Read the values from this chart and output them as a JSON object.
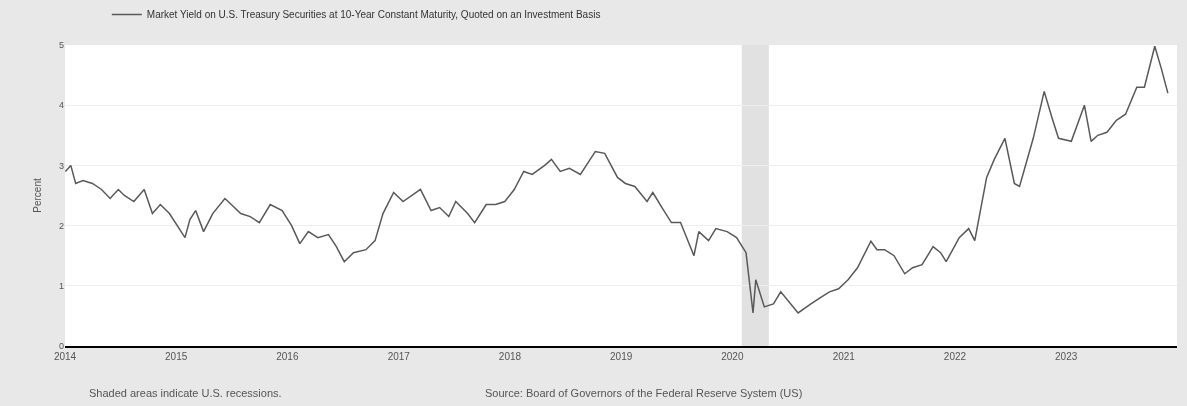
{
  "chart_data": {
    "type": "line",
    "ylabel": "Percent",
    "x": [
      "2014-01-02",
      "2014-01-20",
      "2014-02-05",
      "2014-03-01",
      "2014-04-01",
      "2014-05-01",
      "2014-05-29",
      "2014-06-25",
      "2014-07-15",
      "2014-08-15",
      "2014-09-18",
      "2014-10-15",
      "2014-11-10",
      "2014-12-10",
      "2015-01-30",
      "2015-02-15",
      "2015-03-06",
      "2015-04-01",
      "2015-05-01",
      "2015-06-10",
      "2015-07-01",
      "2015-08-01",
      "2015-09-01",
      "2015-10-01",
      "2015-11-06",
      "2015-12-15",
      "2016-01-15",
      "2016-02-11",
      "2016-03-10",
      "2016-04-10",
      "2016-05-15",
      "2016-06-10",
      "2016-07-06",
      "2016-08-05",
      "2016-09-15",
      "2016-10-15",
      "2016-11-10",
      "2016-12-15",
      "2017-01-15",
      "2017-03-13",
      "2017-04-17",
      "2017-05-15",
      "2017-06-14",
      "2017-07-07",
      "2017-08-15",
      "2017-09-07",
      "2017-10-15",
      "2017-11-15",
      "2017-12-15",
      "2018-01-15",
      "2018-02-15",
      "2018-03-15",
      "2018-04-25",
      "2018-05-17",
      "2018-06-15",
      "2018-07-15",
      "2018-08-20",
      "2018-09-15",
      "2018-10-08",
      "2018-11-08",
      "2018-12-20",
      "2019-01-15",
      "2019-02-15",
      "2019-03-27",
      "2019-04-15",
      "2019-05-15",
      "2019-06-15",
      "2019-07-15",
      "2019-08-28",
      "2019-09-13",
      "2019-10-15",
      "2019-11-08",
      "2019-12-15",
      "2020-01-15",
      "2020-02-15",
      "2020-03-09",
      "2020-03-18",
      "2020-04-15",
      "2020-05-15",
      "2020-06-08",
      "2020-08-04",
      "2020-09-15",
      "2020-10-15",
      "2020-11-15",
      "2020-12-15",
      "2021-01-15",
      "2021-02-15",
      "2021-03-31",
      "2021-04-20",
      "2021-05-15",
      "2021-06-15",
      "2021-07-20",
      "2021-08-15",
      "2021-09-15",
      "2021-10-21",
      "2021-11-15",
      "2021-12-03",
      "2022-01-15",
      "2022-02-15",
      "2022-03-07",
      "2022-04-15",
      "2022-05-10",
      "2022-06-14",
      "2022-07-15",
      "2022-08-01",
      "2022-09-15",
      "2022-10-21",
      "2022-11-15",
      "2022-12-07",
      "2023-01-18",
      "2023-03-02",
      "2023-03-24",
      "2023-04-15",
      "2023-05-15",
      "2023-06-15",
      "2023-07-15",
      "2023-08-21",
      "2023-09-15",
      "2023-10-19",
      "2023-11-10",
      "2023-12-01"
    ],
    "series": [
      {
        "name": "Market Yield on U.S. Treasury Securities at 10-Year Constant Maturity, Quoted on an Investment Basis",
        "color": "#595959",
        "values": [
          2.9,
          3.0,
          2.7,
          2.75,
          2.7,
          2.6,
          2.45,
          2.6,
          2.5,
          2.4,
          2.6,
          2.2,
          2.35,
          2.2,
          1.8,
          2.1,
          2.25,
          1.9,
          2.2,
          2.45,
          2.35,
          2.2,
          2.15,
          2.05,
          2.35,
          2.25,
          2.0,
          1.7,
          1.9,
          1.8,
          1.85,
          1.65,
          1.4,
          1.55,
          1.6,
          1.75,
          2.2,
          2.55,
          2.4,
          2.6,
          2.25,
          2.3,
          2.15,
          2.4,
          2.2,
          2.05,
          2.35,
          2.35,
          2.4,
          2.6,
          2.9,
          2.85,
          3.0,
          3.1,
          2.9,
          2.95,
          2.85,
          3.05,
          3.23,
          3.2,
          2.8,
          2.7,
          2.65,
          2.4,
          2.55,
          2.3,
          2.05,
          2.05,
          1.5,
          1.9,
          1.75,
          1.95,
          1.9,
          1.8,
          1.55,
          0.55,
          1.1,
          0.65,
          0.7,
          0.9,
          0.55,
          0.7,
          0.8,
          0.9,
          0.95,
          1.1,
          1.3,
          1.74,
          1.6,
          1.6,
          1.5,
          1.2,
          1.3,
          1.35,
          1.65,
          1.55,
          1.4,
          1.8,
          1.95,
          1.75,
          2.8,
          3.1,
          3.45,
          2.7,
          2.65,
          3.45,
          4.23,
          3.8,
          3.45,
          3.4,
          4.0,
          3.4,
          3.5,
          3.55,
          3.75,
          3.85,
          4.3,
          4.3,
          4.98,
          4.6,
          4.2
        ]
      }
    ],
    "xlim": [
      "2014-01-01",
      "2023-12-31"
    ],
    "xticks": [
      {
        "value": "2014-01-01",
        "label": "2014"
      },
      {
        "value": "2015-01-01",
        "label": "2015"
      },
      {
        "value": "2016-01-01",
        "label": "2016"
      },
      {
        "value": "2017-01-01",
        "label": "2017"
      },
      {
        "value": "2018-01-01",
        "label": "2018"
      },
      {
        "value": "2019-01-01",
        "label": "2019"
      },
      {
        "value": "2020-01-01",
        "label": "2020"
      },
      {
        "value": "2021-01-01",
        "label": "2021"
      },
      {
        "value": "2022-01-01",
        "label": "2022"
      },
      {
        "value": "2023-01-01",
        "label": "2023"
      }
    ],
    "ylim": [
      0,
      5
    ],
    "yticks": [
      0,
      1,
      2,
      3,
      4,
      5
    ],
    "grid": "y",
    "legend": "top left",
    "marker": "none",
    "line_style": "solid",
    "bands": [
      {
        "axis": "x",
        "from": "2020-02-01",
        "to": "2020-04-30",
        "color": "#e1e1e1"
      }
    ],
    "annotations": [
      "Shaded areas indicate U.S. recessions.",
      "Source: Board of Governors of the Federal Reserve System (US)"
    ]
  }
}
